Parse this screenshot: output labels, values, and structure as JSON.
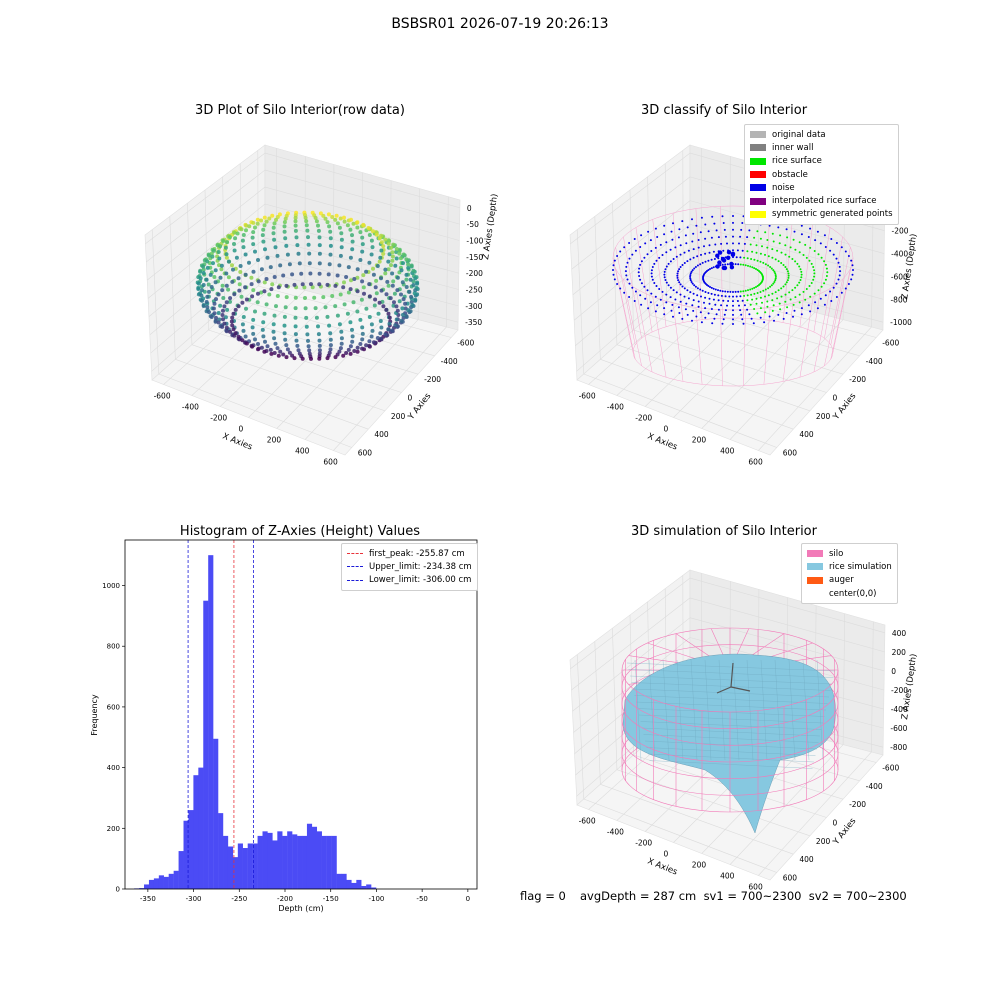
{
  "suptitle": "BSBSR01 2026-07-19 20:26:13",
  "colors": {
    "hist_bar": "#4b4bf5",
    "first_peak": "#e8323a",
    "limits": "#1a1ad8",
    "silo": "#f27ab8",
    "rice_sim": "#86c8e0",
    "auger": "#ff5a14"
  },
  "chart_data": [
    {
      "type": "scatter",
      "subtype": "3d",
      "title": "3D Plot of Silo Interior(row data)",
      "xlabel": "X Axies",
      "ylabel": "Y Axies",
      "zlabel": "Z Axies (Depth)",
      "x_ticks": [
        "-600",
        "-400",
        "-200",
        "0",
        "200",
        "400",
        "600"
      ],
      "y_ticks": [
        "-600",
        "-400",
        "-200",
        "0",
        "200",
        "400",
        "600"
      ],
      "z_ticks": [
        "0",
        "-50",
        "-100",
        "-150",
        "-200",
        "-250",
        "-300",
        "-350"
      ],
      "colormap": "viridis"
    },
    {
      "type": "scatter",
      "subtype": "3d",
      "title": "3D classify of Silo Interior",
      "xlabel": "X Axies",
      "ylabel": "Y Axies",
      "zlabel": "Z Axies (Depth)",
      "x_ticks": [
        "-600",
        "-400",
        "-200",
        "0",
        "200",
        "400",
        "600"
      ],
      "y_ticks": [
        "-600",
        "-400",
        "-200",
        "0",
        "200",
        "400",
        "600"
      ],
      "z_ticks": [
        "0",
        "-200",
        "-400",
        "-600",
        "-800",
        "-1000"
      ],
      "legend": [
        {
          "label": "original data",
          "color": "#b4b4b4"
        },
        {
          "label": "inner wall",
          "color": "#808080"
        },
        {
          "label": "rice surface",
          "color": "#00e600"
        },
        {
          "label": "obstacle",
          "color": "#ff0000"
        },
        {
          "label": "noise",
          "color": "#0000e6"
        },
        {
          "label": "interpolated rice surface",
          "color": "#800080"
        },
        {
          "label": "symmetric generated points",
          "color": "#ffff00"
        }
      ]
    },
    {
      "type": "bar",
      "subtype": "histogram",
      "title": "Histogram of Z-Axies (Height) Values",
      "xlabel": "Depth (cm)",
      "ylabel": "Frequency",
      "xlim": [
        -375,
        10
      ],
      "ylim": [
        0,
        1150
      ],
      "x_ticks": [
        -350,
        -300,
        -250,
        -200,
        -150,
        -100,
        -50,
        0
      ],
      "y_ticks": [
        0,
        200,
        400,
        600,
        800,
        1000
      ],
      "bin_width": 5.4,
      "bin_start": -365,
      "values": [
        2,
        3,
        15,
        30,
        35,
        45,
        40,
        50,
        60,
        125,
        225,
        260,
        375,
        400,
        950,
        1100,
        495,
        250,
        175,
        140,
        105,
        150,
        135,
        150,
        150,
        175,
        190,
        185,
        160,
        190,
        175,
        190,
        180,
        175,
        175,
        215,
        205,
        190,
        175,
        175,
        175,
        50,
        50,
        30,
        20,
        30,
        10,
        15,
        5
      ],
      "vlines": [
        {
          "label": "first_peak: -255.87 cm",
          "x": -255.87,
          "color": "#e8323a"
        },
        {
          "label": "Upper_limit: -234.38 cm",
          "x": -234.38,
          "color": "#1a1ad8"
        },
        {
          "label": "Lower_limit: -306.00 cm",
          "x": -306.0,
          "color": "#1a1ad8"
        }
      ]
    },
    {
      "type": "area",
      "subtype": "3d-surface",
      "title": "3D simulation of Silo Interior",
      "xlabel": "X Axies",
      "ylabel": "Y Axies",
      "zlabel": "Z Axies (Depth)",
      "x_ticks": [
        "-600",
        "-400",
        "-200",
        "0",
        "200",
        "400",
        "600"
      ],
      "y_ticks": [
        "-600",
        "-400",
        "-200",
        "0",
        "200",
        "400",
        "600"
      ],
      "z_ticks": [
        "400",
        "200",
        "0",
        "-200",
        "-400",
        "-600",
        "-800"
      ],
      "legend": [
        {
          "label": "silo",
          "color": "#f27ab8"
        },
        {
          "label": "rice simulation",
          "color": "#86c8e0"
        },
        {
          "label": "auger",
          "color": "#ff5a14"
        },
        {
          "label": "center(0,0)",
          "color": ""
        }
      ]
    }
  ],
  "footer": {
    "flag": "flag = 0",
    "stats": "avgDepth = 287 cm  sv1 = 700~2300  sv2 = 700~2300"
  }
}
